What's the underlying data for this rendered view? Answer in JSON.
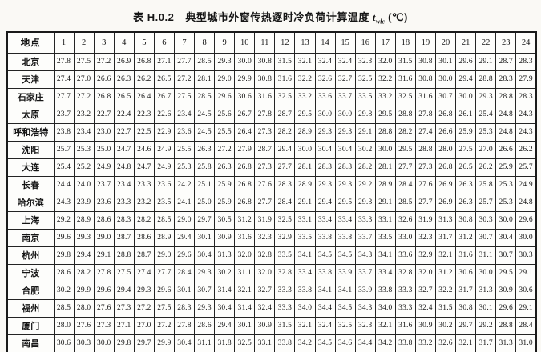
{
  "title": {
    "table_no": "表 H.0.2",
    "text": "典型城市外窗传热逐时冷负荷计算温度",
    "symbol": "t",
    "symbol_sub": "wlc",
    "unit": "(℃)"
  },
  "table": {
    "corner_header": "地点",
    "hour_headers": [
      "1",
      "2",
      "3",
      "4",
      "5",
      "6",
      "7",
      "8",
      "9",
      "10",
      "11",
      "12",
      "13",
      "14",
      "15",
      "16",
      "17",
      "18",
      "19",
      "20",
      "21",
      "22",
      "23",
      "24"
    ],
    "rows": [
      {
        "city": "北京",
        "values": [
          "27.8",
          "27.5",
          "27.2",
          "26.9",
          "26.8",
          "27.1",
          "27.7",
          "28.5",
          "29.3",
          "30.0",
          "30.8",
          "31.5",
          "32.1",
          "32.4",
          "32.4",
          "32.3",
          "32.0",
          "31.5",
          "30.8",
          "30.1",
          "29.6",
          "29.1",
          "28.7",
          "28.3"
        ]
      },
      {
        "city": "天津",
        "values": [
          "27.4",
          "27.0",
          "26.6",
          "26.3",
          "26.2",
          "26.5",
          "27.2",
          "28.1",
          "29.0",
          "29.9",
          "30.8",
          "31.6",
          "32.2",
          "32.6",
          "32.7",
          "32.5",
          "32.2",
          "31.6",
          "30.8",
          "30.0",
          "29.4",
          "28.8",
          "28.3",
          "27.9"
        ]
      },
      {
        "city": "石家庄",
        "values": [
          "27.7",
          "27.2",
          "26.8",
          "26.5",
          "26.4",
          "26.7",
          "27.5",
          "28.5",
          "29.6",
          "30.6",
          "31.6",
          "32.5",
          "33.2",
          "33.6",
          "33.7",
          "33.5",
          "33.2",
          "32.5",
          "31.6",
          "30.7",
          "30.0",
          "29.3",
          "28.8",
          "28.3"
        ]
      },
      {
        "city": "太原",
        "values": [
          "23.7",
          "23.2",
          "22.7",
          "22.4",
          "22.3",
          "22.6",
          "23.4",
          "24.5",
          "25.6",
          "26.7",
          "27.8",
          "28.7",
          "29.5",
          "30.0",
          "30.0",
          "29.8",
          "29.5",
          "28.8",
          "27.8",
          "26.8",
          "26.1",
          "25.4",
          "24.8",
          "24.3"
        ]
      },
      {
        "city": "呼和浩特",
        "values": [
          "23.8",
          "23.4",
          "23.0",
          "22.7",
          "22.5",
          "22.9",
          "23.6",
          "24.5",
          "25.5",
          "26.4",
          "27.3",
          "28.2",
          "28.9",
          "29.3",
          "29.3",
          "29.1",
          "28.8",
          "28.2",
          "27.4",
          "26.6",
          "25.9",
          "25.3",
          "24.8",
          "24.3"
        ]
      },
      {
        "city": "沈阳",
        "values": [
          "25.7",
          "25.3",
          "25.0",
          "24.7",
          "24.6",
          "24.9",
          "25.5",
          "26.3",
          "27.2",
          "27.9",
          "28.7",
          "29.4",
          "30.0",
          "30.4",
          "30.4",
          "30.2",
          "30.0",
          "29.5",
          "28.8",
          "28.0",
          "27.5",
          "27.0",
          "26.6",
          "26.2"
        ]
      },
      {
        "city": "大连",
        "values": [
          "25.4",
          "25.2",
          "24.9",
          "24.8",
          "24.7",
          "24.9",
          "25.3",
          "25.8",
          "26.3",
          "26.8",
          "27.3",
          "27.7",
          "28.1",
          "28.3",
          "28.3",
          "28.2",
          "28.1",
          "27.7",
          "27.3",
          "26.8",
          "26.5",
          "26.2",
          "25.9",
          "25.7"
        ]
      },
      {
        "city": "长春",
        "values": [
          "24.4",
          "24.0",
          "23.7",
          "23.4",
          "23.3",
          "23.6",
          "24.2",
          "25.1",
          "25.9",
          "26.8",
          "27.6",
          "28.3",
          "28.9",
          "29.3",
          "29.3",
          "29.2",
          "28.9",
          "28.4",
          "27.6",
          "26.9",
          "26.3",
          "25.8",
          "25.3",
          "24.9"
        ]
      },
      {
        "city": "哈尔滨",
        "values": [
          "24.3",
          "23.9",
          "23.6",
          "23.3",
          "23.2",
          "23.5",
          "24.1",
          "25.0",
          "25.9",
          "26.8",
          "27.7",
          "28.4",
          "29.1",
          "29.4",
          "29.5",
          "29.3",
          "29.1",
          "28.5",
          "27.7",
          "26.9",
          "26.3",
          "25.7",
          "25.3",
          "24.8"
        ]
      },
      {
        "city": "上海",
        "values": [
          "29.2",
          "28.9",
          "28.6",
          "28.3",
          "28.2",
          "28.5",
          "29.0",
          "29.7",
          "30.5",
          "31.2",
          "31.9",
          "32.5",
          "33.1",
          "33.4",
          "33.4",
          "33.3",
          "33.1",
          "32.6",
          "31.9",
          "31.3",
          "30.8",
          "30.3",
          "30.0",
          "29.6"
        ]
      },
      {
        "city": "南京",
        "values": [
          "29.6",
          "29.3",
          "29.0",
          "28.7",
          "28.6",
          "28.9",
          "29.4",
          "30.1",
          "30.9",
          "31.6",
          "32.3",
          "32.9",
          "33.5",
          "33.8",
          "33.8",
          "33.7",
          "33.5",
          "33.0",
          "32.3",
          "31.7",
          "31.2",
          "30.7",
          "30.4",
          "30.0"
        ]
      },
      {
        "city": "杭州",
        "values": [
          "29.8",
          "29.4",
          "29.1",
          "28.8",
          "28.7",
          "29.0",
          "29.6",
          "30.4",
          "31.3",
          "32.0",
          "32.8",
          "33.5",
          "34.1",
          "34.5",
          "34.5",
          "34.3",
          "34.1",
          "33.6",
          "32.9",
          "32.1",
          "31.6",
          "31.1",
          "30.7",
          "30.3"
        ]
      },
      {
        "city": "宁波",
        "values": [
          "28.6",
          "28.2",
          "27.8",
          "27.5",
          "27.4",
          "27.7",
          "28.4",
          "29.3",
          "30.2",
          "31.1",
          "32.0",
          "32.8",
          "33.4",
          "33.8",
          "33.9",
          "33.7",
          "33.4",
          "32.8",
          "32.0",
          "31.2",
          "30.6",
          "30.0",
          "29.5",
          "29.1"
        ]
      },
      {
        "city": "合肥",
        "values": [
          "30.2",
          "29.9",
          "29.6",
          "29.4",
          "29.3",
          "29.6",
          "30.1",
          "30.7",
          "31.4",
          "32.1",
          "32.7",
          "33.3",
          "33.8",
          "34.1",
          "34.1",
          "33.9",
          "33.8",
          "33.3",
          "32.7",
          "32.2",
          "31.7",
          "31.3",
          "30.9",
          "30.6"
        ]
      },
      {
        "city": "福州",
        "values": [
          "28.5",
          "28.0",
          "27.6",
          "27.3",
          "27.2",
          "27.5",
          "28.3",
          "29.3",
          "30.4",
          "31.4",
          "32.4",
          "33.3",
          "34.0",
          "34.4",
          "34.5",
          "34.3",
          "34.0",
          "33.3",
          "32.4",
          "31.5",
          "30.8",
          "30.1",
          "29.6",
          "29.1"
        ]
      },
      {
        "city": "厦门",
        "values": [
          "28.0",
          "27.6",
          "27.3",
          "27.1",
          "27.0",
          "27.2",
          "27.8",
          "28.6",
          "29.4",
          "30.1",
          "30.9",
          "31.5",
          "32.1",
          "32.4",
          "32.5",
          "32.3",
          "32.1",
          "31.6",
          "30.9",
          "30.2",
          "29.7",
          "29.2",
          "28.8",
          "28.4"
        ]
      },
      {
        "city": "南昌",
        "values": [
          "30.6",
          "30.3",
          "30.0",
          "29.8",
          "29.7",
          "29.9",
          "30.4",
          "31.1",
          "31.8",
          "32.5",
          "33.1",
          "33.8",
          "34.2",
          "34.5",
          "34.6",
          "34.4",
          "34.2",
          "33.8",
          "33.2",
          "32.6",
          "32.1",
          "31.7",
          "31.3",
          "31.0"
        ]
      }
    ]
  }
}
